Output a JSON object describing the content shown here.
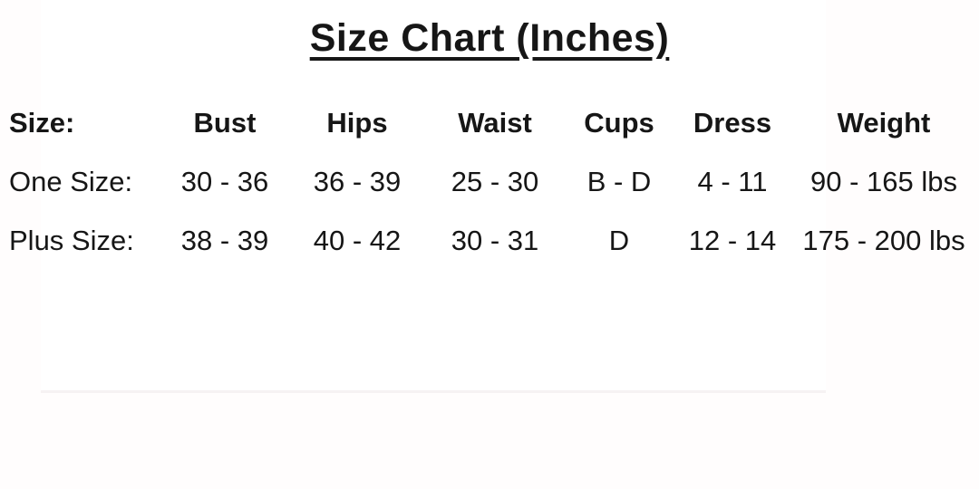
{
  "page_title": "Size Chart (Inches)",
  "colors": {
    "background": "#fffdfd",
    "panel": "#ffffff",
    "text": "#161616"
  },
  "chart_data": {
    "type": "table",
    "title": "Size Chart (Inches)",
    "columns": [
      "Size:",
      "Bust",
      "Hips",
      "Waist",
      "Cups",
      "Dress",
      "Weight"
    ],
    "rows": [
      [
        "One Size:",
        "30 - 36",
        "36 - 39",
        "25 - 30",
        "B - D",
        "4 - 11",
        "90 - 165 lbs"
      ],
      [
        "Plus Size:",
        "38 - 39",
        "40 - 42",
        "30 - 31",
        "D",
        "12 - 14",
        "175 - 200 lbs"
      ]
    ],
    "units": "Inches",
    "layout": {
      "title_underlined": true,
      "header_bold": true,
      "first_column_align": "left",
      "other_columns_align": "center",
      "grid": "off"
    }
  }
}
